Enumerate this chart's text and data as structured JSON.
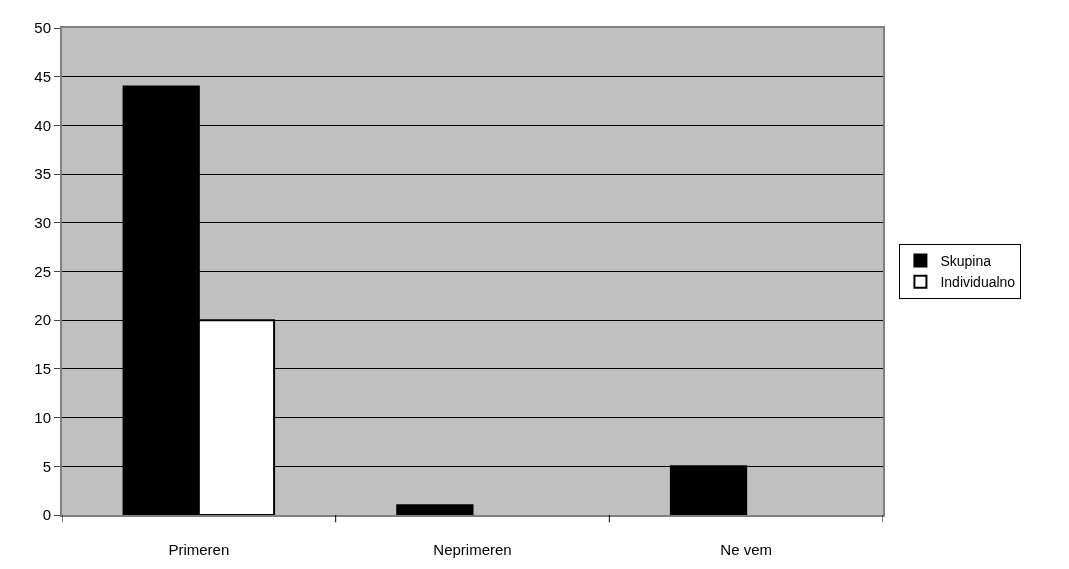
{
  "chart_data": {
    "type": "bar",
    "categories": [
      "Primeren",
      "Neprimeren",
      "Ne vem"
    ],
    "series": [
      {
        "name": "Skupina",
        "color": "#000000",
        "values": [
          44,
          1,
          5
        ]
      },
      {
        "name": "Individualno",
        "color": "#ffffff",
        "values": [
          20,
          0,
          0
        ]
      }
    ],
    "ylim": [
      0,
      50
    ],
    "yticks": [
      0,
      5,
      10,
      15,
      20,
      25,
      30,
      35,
      40,
      45,
      50
    ],
    "grid": "y",
    "legend": "right"
  }
}
